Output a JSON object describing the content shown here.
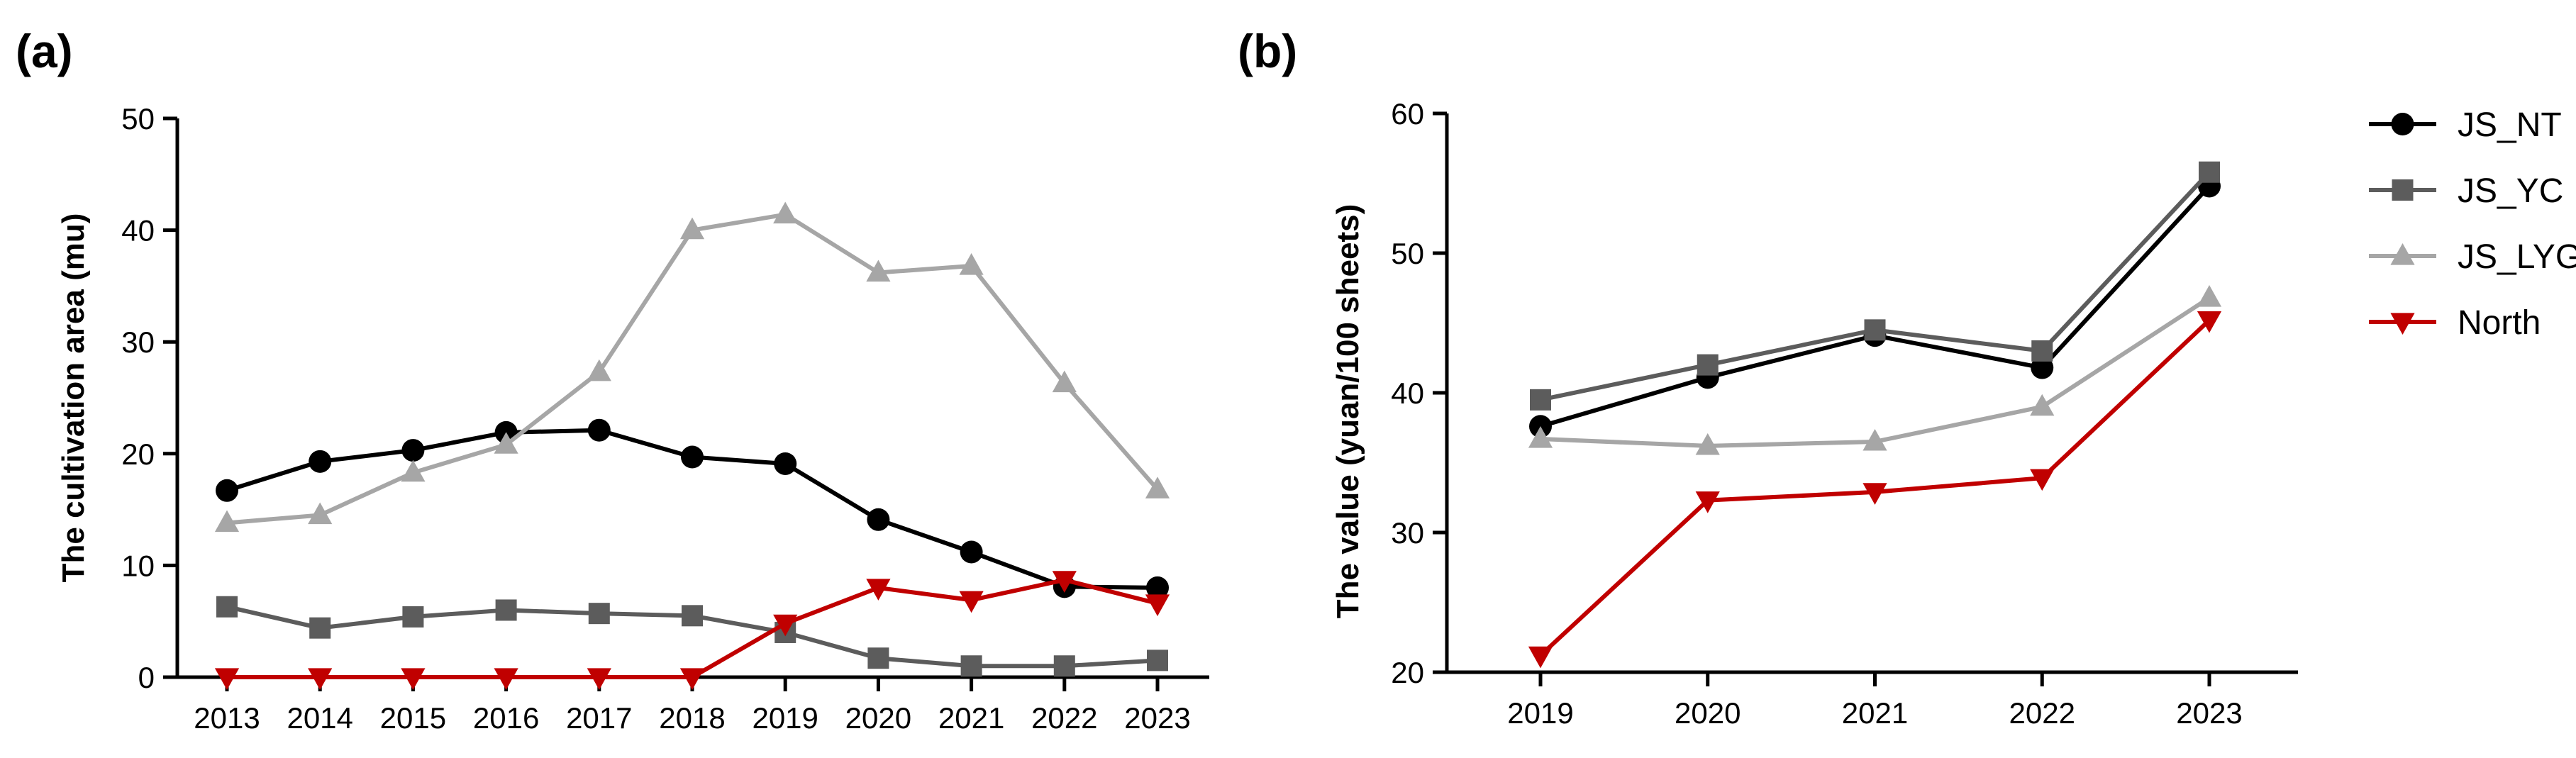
{
  "chart_data": [
    {
      "type": "line",
      "panel_label": "(a)",
      "title": "",
      "xlabel": "",
      "ylabel": "The cultivation area  (mu)",
      "ylim": [
        0,
        50
      ],
      "yticks": [
        0,
        10,
        20,
        30,
        40,
        50
      ],
      "ytick_labels": [
        "0",
        "10",
        "20",
        "30",
        "40",
        "50"
      ],
      "categories": [
        "2013",
        "2014",
        "2015",
        "2016",
        "2017",
        "2018",
        "2019",
        "2020",
        "2021",
        "2022",
        "2023"
      ],
      "series": [
        {
          "name": "JS_NT",
          "color": "#000000",
          "marker": "circle",
          "values": [
            16.7,
            19.3,
            20.3,
            21.9,
            22.1,
            19.7,
            19.1,
            14.1,
            11.2,
            8.1,
            8.0
          ]
        },
        {
          "name": "JS_YC",
          "color": "#5c5c5c",
          "marker": "square",
          "values": [
            6.3,
            4.4,
            5.4,
            6.0,
            5.7,
            5.5,
            4.0,
            1.7,
            1.0,
            1.0,
            1.5
          ]
        },
        {
          "name": "JS_LYG",
          "color": "#a6a6a6",
          "marker": "triangle-up",
          "values": [
            13.8,
            14.5,
            18.3,
            20.8,
            27.3,
            40.0,
            41.4,
            36.2,
            36.8,
            26.3,
            16.8
          ]
        },
        {
          "name": "North",
          "color": "#c00000",
          "marker": "triangle-down",
          "values": [
            0,
            0,
            0,
            0,
            0,
            0,
            4.8,
            8.0,
            6.9,
            8.7,
            6.6
          ]
        }
      ]
    },
    {
      "type": "line",
      "panel_label": "(b)",
      "title": "",
      "xlabel": "",
      "ylabel": "The value (yuan/100 sheets)",
      "ylim": [
        20,
        60
      ],
      "yticks": [
        20,
        30,
        40,
        50,
        60
      ],
      "ytick_labels": [
        "20",
        "30",
        "40",
        "50",
        "60"
      ],
      "categories": [
        "2019",
        "2020",
        "2021",
        "2022",
        "2023"
      ],
      "series": [
        {
          "name": "JS_NT",
          "color": "#000000",
          "marker": "circle",
          "values": [
            37.6,
            41.1,
            44.1,
            41.8,
            54.8
          ]
        },
        {
          "name": "JS_YC",
          "color": "#5c5c5c",
          "marker": "square",
          "values": [
            39.5,
            42.0,
            44.5,
            43.0,
            55.8
          ]
        },
        {
          "name": "JS_LYG",
          "color": "#a6a6a6",
          "marker": "triangle-up",
          "values": [
            36.7,
            36.2,
            36.5,
            39.0,
            46.8
          ]
        },
        {
          "name": "North",
          "color": "#c00000",
          "marker": "triangle-down",
          "values": [
            21.2,
            32.3,
            32.9,
            33.9,
            45.2
          ]
        }
      ]
    }
  ],
  "legend": {
    "placement": "right",
    "entries": [
      {
        "name": "JS_NT",
        "color": "#000000",
        "marker": "circle"
      },
      {
        "name": "JS_YC",
        "color": "#5c5c5c",
        "marker": "square"
      },
      {
        "name": "JS_LYG",
        "color": "#a6a6a6",
        "marker": "triangle-up"
      },
      {
        "name": "North",
        "color": "#c00000",
        "marker": "triangle-down"
      }
    ]
  }
}
